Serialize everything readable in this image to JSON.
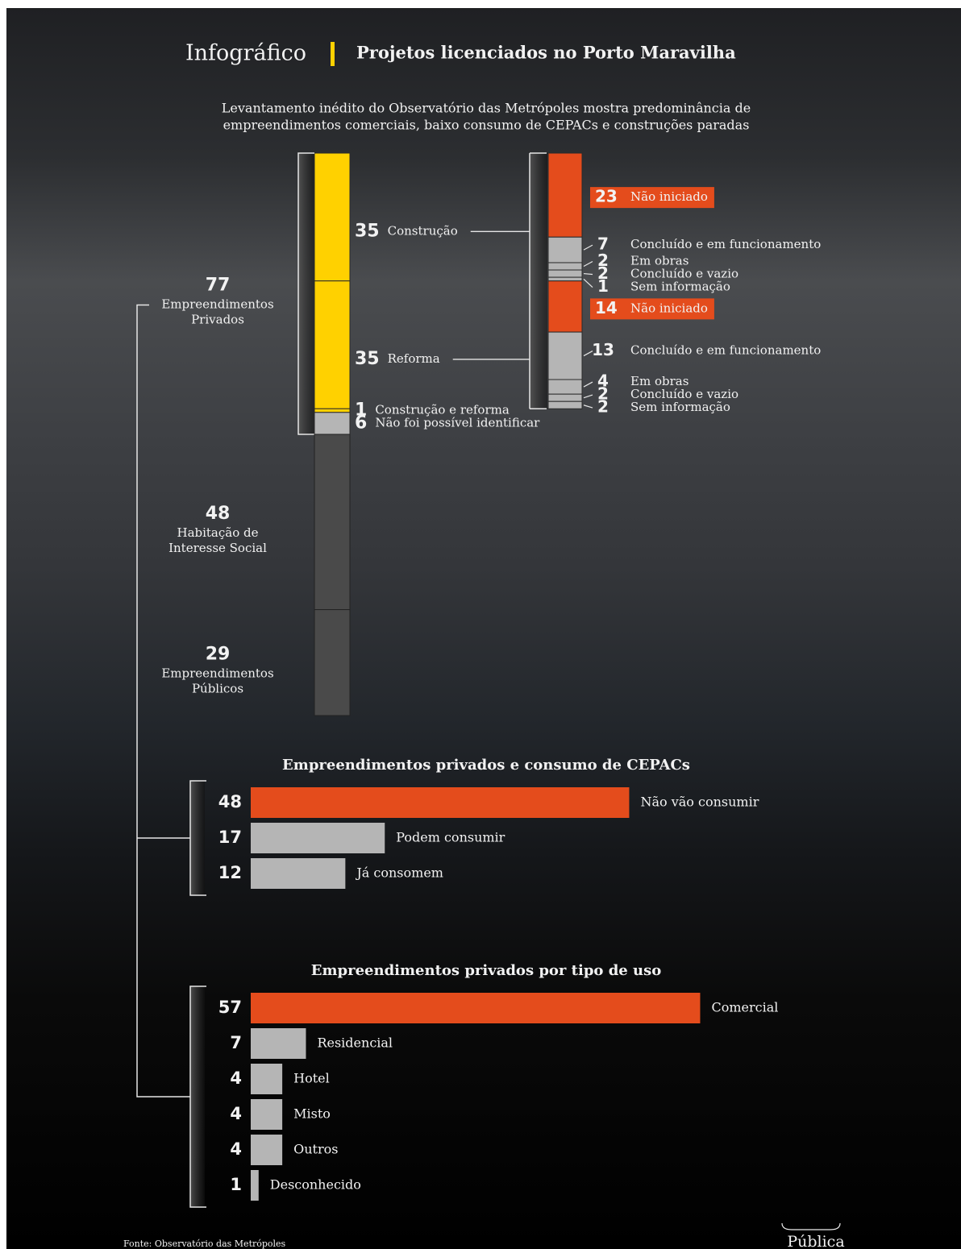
{
  "header": {
    "kicker": "Infográfico",
    "title": "Projetos licenciados no Porto Maravilha",
    "subtitle": [
      "Levantamento inédito do Observatório das Metrópoles mostra predominância de",
      "empreendimentos comerciais, baixo consumo de CEPACs e construções paradas"
    ]
  },
  "chart_data": [
    {
      "type": "stacked-column",
      "groups": [
        {
          "value": 77,
          "label": [
            "Empreendimentos",
            "Privados"
          ],
          "segments": [
            {
              "name": "Construção",
              "value": 35,
              "color": "#ffd100",
              "breakdown": [
                {
                  "name": "Não iniciado",
                  "value": 23,
                  "color": "#e44c1c"
                },
                {
                  "name": "Concluído e em funcionamento",
                  "value": 7,
                  "color": "#b5b5b5"
                },
                {
                  "name": "Em obras",
                  "value": 2,
                  "color": "#b5b5b5"
                },
                {
                  "name": "Concluído e vazio",
                  "value": 2,
                  "color": "#b5b5b5"
                },
                {
                  "name": "Sem informação",
                  "value": 1,
                  "color": "#b5b5b5"
                }
              ]
            },
            {
              "name": "Reforma",
              "value": 35,
              "color": "#ffd100",
              "breakdown": [
                {
                  "name": "Não iniciado",
                  "value": 14,
                  "color": "#e44c1c"
                },
                {
                  "name": "Concluído e em funcionamento",
                  "value": 13,
                  "color": "#b5b5b5"
                },
                {
                  "name": "Em obras",
                  "value": 4,
                  "color": "#b5b5b5"
                },
                {
                  "name": "Concluído e vazio",
                  "value": 2,
                  "color": "#b5b5b5"
                },
                {
                  "name": "Sem informação",
                  "value": 2,
                  "color": "#b5b5b5"
                }
              ]
            },
            {
              "name": "Construção e reforma",
              "value": 1,
              "color": "#ffd100"
            },
            {
              "name": "Não foi possível identificar",
              "value": 6,
              "color": "#b5b5b5"
            }
          ]
        },
        {
          "value": 48,
          "label": [
            "Habitação de",
            "Interesse Social"
          ],
          "color": "#4a4a4a"
        },
        {
          "value": 29,
          "label": [
            "Empreendimentos",
            "Públicos"
          ],
          "color": "#4a4a4a"
        }
      ]
    },
    {
      "type": "bar",
      "title": "Empreendimentos privados e consumo de CEPACs",
      "categories": [
        "Não vão consumir",
        "Podem consumir",
        "Já consomem"
      ],
      "values": [
        48,
        17,
        12
      ],
      "colors": [
        "#e44c1c",
        "#b5b5b5",
        "#b5b5b5"
      ]
    },
    {
      "type": "bar",
      "title": "Empreendimentos privados por tipo de uso",
      "categories": [
        "Comercial",
        "Residencial",
        "Hotel",
        "Misto",
        "Outros",
        "Desconhecido"
      ],
      "values": [
        57,
        7,
        4,
        4,
        4,
        1
      ],
      "colors": [
        "#e44c1c",
        "#b5b5b5",
        "#b5b5b5",
        "#b5b5b5",
        "#b5b5b5",
        "#b5b5b5"
      ]
    }
  ],
  "source": "Fonte: Observatório das Metrópoles",
  "logo": "Pública"
}
